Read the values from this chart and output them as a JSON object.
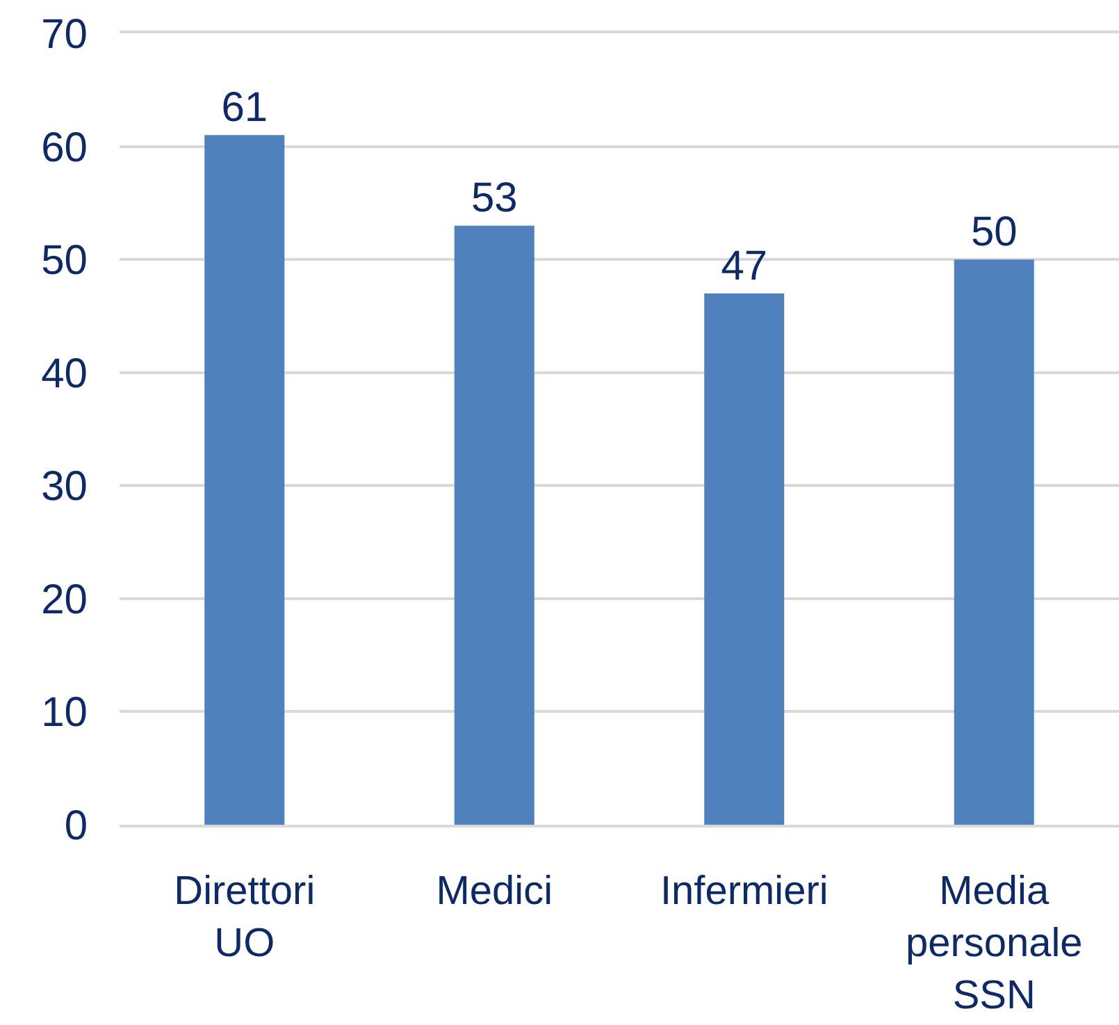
{
  "chart_data": {
    "type": "bar",
    "categories": [
      "Direttori UO",
      "Medici",
      "Infermieri",
      "Media personale SSN"
    ],
    "values": [
      61,
      53,
      47,
      50
    ],
    "color": "#4f81bd",
    "ylim": [
      0,
      70
    ],
    "yticks": [
      0,
      10,
      20,
      30,
      40,
      50,
      60,
      70
    ],
    "grid": "y",
    "data_labels": true
  }
}
